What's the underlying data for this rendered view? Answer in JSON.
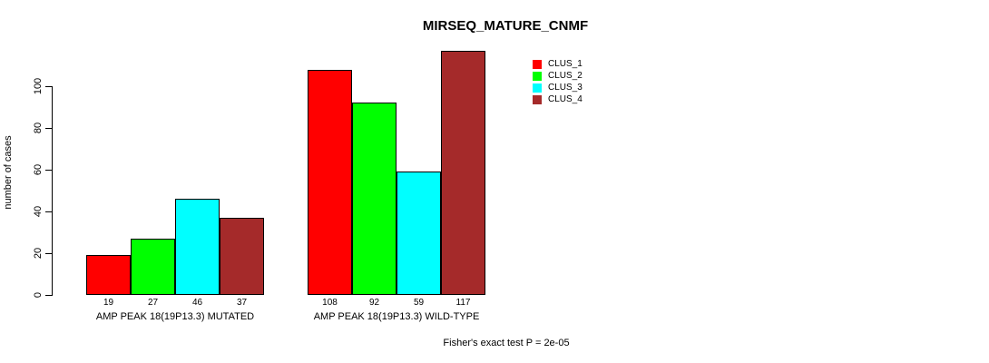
{
  "chart_data": {
    "type": "bar",
    "title": "MIRSEQ_MATURE_CNMF",
    "ylabel": "number of cases",
    "xlabel": "",
    "ylim": [
      0,
      100
    ],
    "yticks": [
      0,
      20,
      40,
      60,
      80,
      100
    ],
    "grid": false,
    "legend_position": "top-right",
    "categories": [
      "AMP PEAK 18(19P13.3) MUTATED",
      "AMP PEAK 18(19P13.3) WILD-TYPE"
    ],
    "series": [
      {
        "name": "CLUS_1",
        "color": "#FF0000",
        "values": [
          19,
          108
        ]
      },
      {
        "name": "CLUS_2",
        "color": "#00FF00",
        "values": [
          27,
          92
        ]
      },
      {
        "name": "CLUS_3",
        "color": "#00FFFF",
        "values": [
          46,
          59
        ]
      },
      {
        "name": "CLUS_4",
        "color": "#A52A2A",
        "values": [
          37,
          117
        ]
      }
    ],
    "value_labels_shown": true,
    "annotation": "Fisher's exact test P = 2e-05"
  },
  "colors": {
    "axis": "#000000",
    "text": "#000000",
    "background": "#FFFFFF"
  }
}
